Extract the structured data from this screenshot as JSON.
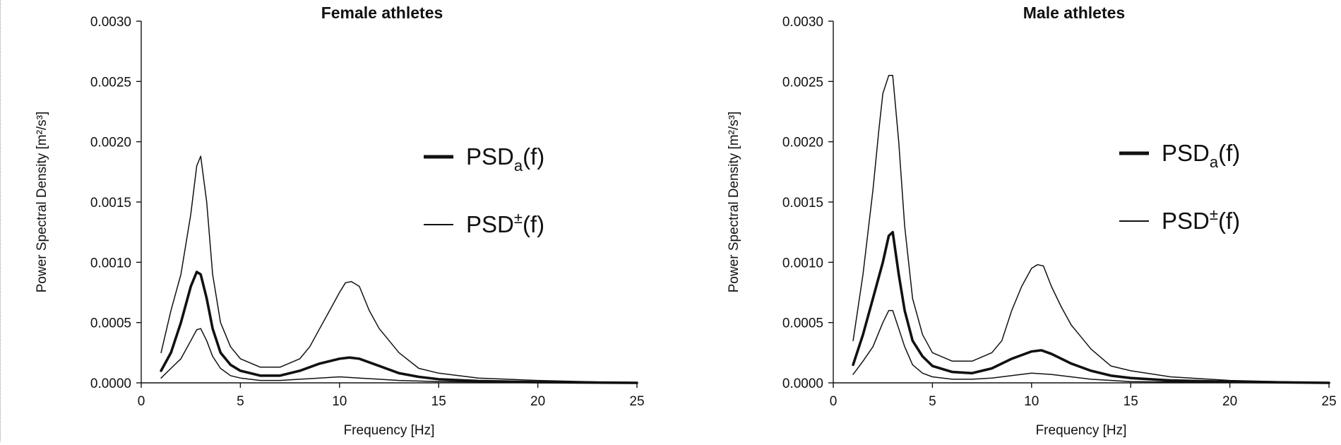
{
  "chart_data": [
    {
      "type": "line",
      "title": "Female athletes",
      "xlabel": "Frequency [Hz]",
      "ylabel": "Power Spectral Density [m²/s³]",
      "xlim": [
        0,
        25
      ],
      "ylim": [
        0,
        0.003
      ],
      "x_ticks": [
        "0",
        "5",
        "10",
        "15",
        "20",
        "25"
      ],
      "y_ticks": [
        "0.0000",
        "0.0005",
        "0.0010",
        "0.0015",
        "0.0020",
        "0.0025",
        "0.0030"
      ],
      "grid": false,
      "legend_position": "right",
      "legend": [
        {
          "key": "PSD",
          "sub": "a",
          "sup": "",
          "tail": "(f)",
          "style": "thick"
        },
        {
          "key": "PSD",
          "sub": "",
          "sup": "±",
          "tail": "(f)",
          "style": "thin"
        }
      ],
      "series": [
        {
          "name": "PSD+(f)",
          "style": "thin",
          "x": [
            1,
            1.5,
            2,
            2.5,
            2.8,
            3,
            3.3,
            3.6,
            4,
            4.5,
            5,
            6,
            7,
            8,
            8.5,
            9,
            9.5,
            10,
            10.3,
            10.6,
            11,
            11.5,
            12,
            13,
            14,
            15,
            17,
            20,
            25
          ],
          "y": [
            0.00025,
            0.0006,
            0.0009,
            0.0014,
            0.0018,
            0.00188,
            0.0015,
            0.0009,
            0.0005,
            0.0003,
            0.0002,
            0.00013,
            0.00013,
            0.0002,
            0.0003,
            0.00045,
            0.0006,
            0.00075,
            0.00083,
            0.00084,
            0.0008,
            0.0006,
            0.00045,
            0.00025,
            0.00012,
            8e-05,
            4e-05,
            2e-05,
            0.0
          ]
        },
        {
          "name": "PSDa(f)",
          "style": "thick",
          "x": [
            1,
            1.5,
            2,
            2.5,
            2.8,
            3,
            3.3,
            3.6,
            4,
            4.5,
            5,
            6,
            7,
            8,
            9,
            10,
            10.5,
            11,
            12,
            13,
            14,
            15,
            17,
            20,
            25
          ],
          "y": [
            0.0001,
            0.00025,
            0.0005,
            0.0008,
            0.00092,
            0.0009,
            0.0007,
            0.00045,
            0.00025,
            0.00015,
            0.0001,
            6e-05,
            6e-05,
            0.0001,
            0.00016,
            0.0002,
            0.00021,
            0.0002,
            0.00014,
            8e-05,
            5e-05,
            3e-05,
            1.5e-05,
            5e-06,
            0.0
          ]
        },
        {
          "name": "PSD-(f)",
          "style": "thin",
          "x": [
            1,
            1.5,
            2,
            2.5,
            2.8,
            3,
            3.3,
            3.6,
            4,
            4.5,
            5,
            6,
            7,
            8,
            9,
            10,
            11,
            12,
            13,
            15,
            20,
            25
          ],
          "y": [
            4e-05,
            0.00012,
            0.0002,
            0.00035,
            0.00044,
            0.00045,
            0.00035,
            0.00022,
            0.00012,
            6e-05,
            4e-05,
            2e-05,
            2e-05,
            3e-05,
            4e-05,
            5e-05,
            4e-05,
            3e-05,
            2e-05,
            1e-05,
            3e-06,
            0.0
          ]
        }
      ]
    },
    {
      "type": "line",
      "title": "Male athletes",
      "xlabel": "Frequency [Hz]",
      "ylabel": "Power Spectral Density [m²/s³]",
      "xlim": [
        0,
        25
      ],
      "ylim": [
        0,
        0.003
      ],
      "x_ticks": [
        "0",
        "5",
        "10",
        "15",
        "20",
        "25"
      ],
      "y_ticks": [
        "0.0000",
        "0.0005",
        "0.0010",
        "0.0015",
        "0.0020",
        "0.0025",
        "0.0030"
      ],
      "grid": false,
      "legend_position": "right",
      "legend": [
        {
          "key": "PSD",
          "sub": "a",
          "sup": "",
          "tail": "(f)",
          "style": "thick"
        },
        {
          "key": "PSD",
          "sub": "",
          "sup": "±",
          "tail": "(f)",
          "style": "thin"
        }
      ],
      "series": [
        {
          "name": "PSD+(f)",
          "style": "thin",
          "x": [
            1,
            1.5,
            2,
            2.3,
            2.5,
            2.8,
            3,
            3.3,
            3.6,
            4,
            4.5,
            5,
            6,
            7,
            8,
            8.5,
            9,
            9.5,
            10,
            10.3,
            10.6,
            11,
            11.5,
            12,
            13,
            14,
            15,
            17,
            20,
            25
          ],
          "y": [
            0.00035,
            0.0009,
            0.0016,
            0.0021,
            0.0024,
            0.00255,
            0.00255,
            0.002,
            0.0013,
            0.0007,
            0.0004,
            0.00025,
            0.00018,
            0.00018,
            0.00025,
            0.00035,
            0.0006,
            0.0008,
            0.00095,
            0.00098,
            0.00097,
            0.0008,
            0.00063,
            0.00048,
            0.00028,
            0.00014,
            0.0001,
            5e-05,
            2e-05,
            0.0
          ]
        },
        {
          "name": "PSDa(f)",
          "style": "thick",
          "x": [
            1,
            1.5,
            2,
            2.5,
            2.8,
            3,
            3.3,
            3.6,
            4,
            4.5,
            5,
            6,
            7,
            8,
            9,
            10,
            10.5,
            11,
            12,
            13,
            14,
            15,
            17,
            20,
            25
          ],
          "y": [
            0.00015,
            0.0004,
            0.0007,
            0.001,
            0.00122,
            0.00125,
            0.0009,
            0.0006,
            0.00035,
            0.00022,
            0.00014,
            9e-05,
            8e-05,
            0.00012,
            0.0002,
            0.00026,
            0.00027,
            0.00024,
            0.00016,
            0.0001,
            6e-05,
            4e-05,
            2e-05,
            8e-06,
            0.0
          ]
        },
        {
          "name": "PSD-(f)",
          "style": "thin",
          "x": [
            1,
            1.5,
            2,
            2.5,
            2.8,
            3,
            3.3,
            3.6,
            4,
            4.5,
            5,
            6,
            7,
            8,
            9,
            10,
            11,
            12,
            13,
            15,
            20,
            25
          ],
          "y": [
            7e-05,
            0.00018,
            0.0003,
            0.0005,
            0.0006,
            0.0006,
            0.00045,
            0.0003,
            0.00015,
            8e-05,
            5e-05,
            3e-05,
            3e-05,
            4e-05,
            6e-05,
            8e-05,
            7e-05,
            5e-05,
            3e-05,
            1e-05,
            3e-06,
            0.0
          ]
        }
      ]
    }
  ]
}
